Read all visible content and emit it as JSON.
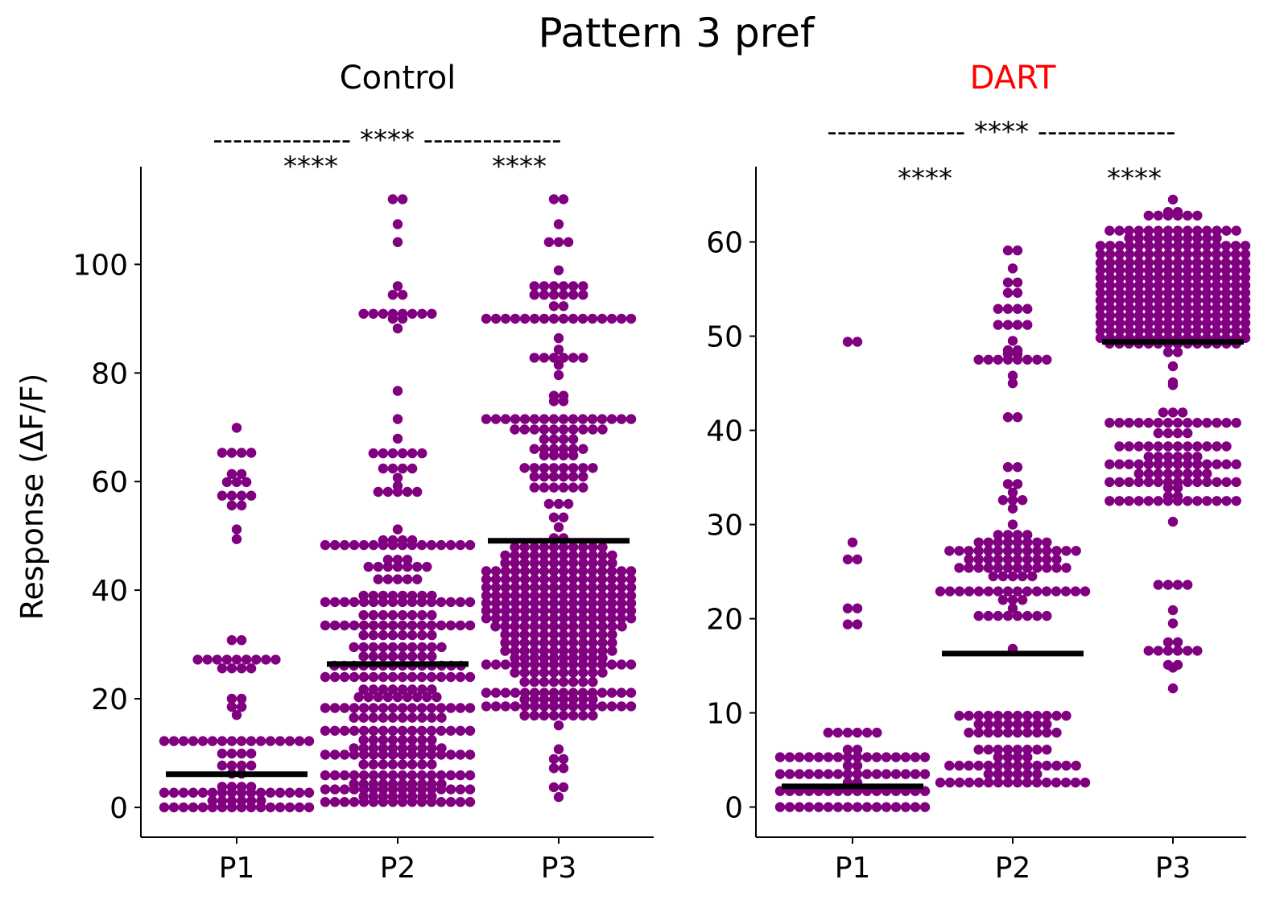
{
  "chart_data": {
    "type": "scatter",
    "subtype": "swarm",
    "title": "Pattern 3 pref",
    "ylabel": "Response (ΔF/F)",
    "marker_color": "#800080",
    "median_color": "#000000",
    "panels": [
      {
        "title": "Control",
        "title_color": "#000000",
        "categories": [
          "P1",
          "P2",
          "P3"
        ],
        "ylim": [
          -5.5,
          118
        ],
        "yticks": [
          0,
          20,
          40,
          60,
          80,
          100
        ],
        "medians": [
          6.1,
          26.4,
          49.1
        ],
        "significance": {
          "overall": "-------------- **** --------------",
          "pairs": [
            "****",
            "****"
          ]
        },
        "points": [
          [
            {
              "y": 69.9,
              "n": 1
            },
            {
              "y": 65.3,
              "n": 4
            },
            {
              "y": 61.4,
              "n": 2
            },
            {
              "y": 59.9,
              "n": 3
            },
            {
              "y": 57.4,
              "n": 4
            },
            {
              "y": 55.6,
              "n": 2
            },
            {
              "y": 51.2,
              "n": 1
            },
            {
              "y": 49.4,
              "n": 1
            },
            {
              "y": 30.8,
              "n": 2
            },
            {
              "y": 27.2,
              "n": 9
            },
            {
              "y": 25.6,
              "n": 4
            },
            {
              "y": 20.0,
              "n": 2
            },
            {
              "y": 18.5,
              "n": 2
            },
            {
              "y": 17.0,
              "n": 1
            },
            {
              "y": 12.2,
              "n": 16
            },
            {
              "y": 9.9,
              "n": 4
            },
            {
              "y": 7.7,
              "n": 4
            },
            {
              "y": 6.2,
              "n": 2
            },
            {
              "y": 3.8,
              "n": 4
            },
            {
              "y": 2.7,
              "n": 16
            },
            {
              "y": 1.2,
              "n": 6
            },
            {
              "y": 0.0,
              "n": 16
            }
          ],
          [
            {
              "y": 112.0,
              "n": 2
            },
            {
              "y": 107.4,
              "n": 1
            },
            {
              "y": 104.1,
              "n": 1
            },
            {
              "y": 96.0,
              "n": 1
            },
            {
              "y": 94.4,
              "n": 2
            },
            {
              "y": 90.9,
              "n": 8
            },
            {
              "y": 90.0,
              "n": 2
            },
            {
              "y": 88.2,
              "n": 1
            },
            {
              "y": 76.7,
              "n": 1
            },
            {
              "y": 71.5,
              "n": 1
            },
            {
              "y": 67.9,
              "n": 1
            },
            {
              "y": 65.2,
              "n": 6
            },
            {
              "y": 62.4,
              "n": 4
            },
            {
              "y": 60.7,
              "n": 1
            },
            {
              "y": 59.2,
              "n": 1
            },
            {
              "y": 58.1,
              "n": 5
            },
            {
              "y": 51.2,
              "n": 1
            },
            {
              "y": 49.2,
              "n": 4
            },
            {
              "y": 48.3,
              "n": 16
            },
            {
              "y": 45.6,
              "n": 3
            },
            {
              "y": 44.3,
              "n": 7
            },
            {
              "y": 42.0,
              "n": 5
            },
            {
              "y": 39.0,
              "n": 8
            },
            {
              "y": 37.8,
              "n": 16
            },
            {
              "y": 35.4,
              "n": 8
            },
            {
              "y": 33.5,
              "n": 16
            },
            {
              "y": 31.7,
              "n": 8
            },
            {
              "y": 29.5,
              "n": 10
            },
            {
              "y": 27.8,
              "n": 8
            },
            {
              "y": 26.1,
              "n": 14
            },
            {
              "y": 24.0,
              "n": 16
            },
            {
              "y": 21.7,
              "n": 8
            },
            {
              "y": 20.3,
              "n": 9
            },
            {
              "y": 18.3,
              "n": 16
            },
            {
              "y": 16.5,
              "n": 10
            },
            {
              "y": 14.1,
              "n": 16
            },
            {
              "y": 12.4,
              "n": 8
            },
            {
              "y": 10.9,
              "n": 10
            },
            {
              "y": 9.7,
              "n": 16
            },
            {
              "y": 7.9,
              "n": 8
            },
            {
              "y": 5.9,
              "n": 16
            },
            {
              "y": 4.3,
              "n": 10
            },
            {
              "y": 3.3,
              "n": 16
            },
            {
              "y": 2.0,
              "n": 8
            },
            {
              "y": 1.0,
              "n": 16
            }
          ],
          [
            {
              "y": 112.0,
              "n": 2
            },
            {
              "y": 107.4,
              "n": 1
            },
            {
              "y": 104.1,
              "n": 3
            },
            {
              "y": 98.9,
              "n": 1
            },
            {
              "y": 96.0,
              "n": 6
            },
            {
              "y": 94.4,
              "n": 6
            },
            {
              "y": 92.3,
              "n": 2
            },
            {
              "y": 90.0,
              "n": 16
            },
            {
              "y": 86.4,
              "n": 1
            },
            {
              "y": 84.3,
              "n": 1
            },
            {
              "y": 82.8,
              "n": 6
            },
            {
              "y": 81.5,
              "n": 1
            },
            {
              "y": 79.6,
              "n": 1
            },
            {
              "y": 75.8,
              "n": 2
            },
            {
              "y": 74.8,
              "n": 2
            },
            {
              "y": 71.5,
              "n": 16
            },
            {
              "y": 69.6,
              "n": 10
            },
            {
              "y": 67.8,
              "n": 4
            },
            {
              "y": 66.0,
              "n": 6
            },
            {
              "y": 64.8,
              "n": 4
            },
            {
              "y": 62.5,
              "n": 8
            },
            {
              "y": 60.9,
              "n": 6
            },
            {
              "y": 58.9,
              "n": 6
            },
            {
              "y": 55.9,
              "n": 3
            },
            {
              "y": 53.4,
              "n": 2
            },
            {
              "y": 51.6,
              "n": 1
            },
            {
              "y": 49.6,
              "n": 2
            },
            {
              "y": 47.9,
              "n": 10
            },
            {
              "y": 46.4,
              "n": 12
            },
            {
              "y": 45.0,
              "n": 12
            },
            {
              "y": 43.5,
              "n": 16
            },
            {
              "y": 42.0,
              "n": 16
            },
            {
              "y": 40.5,
              "n": 16
            },
            {
              "y": 39.0,
              "n": 16
            },
            {
              "y": 37.6,
              "n": 16
            },
            {
              "y": 36.2,
              "n": 16
            },
            {
              "y": 34.8,
              "n": 16
            },
            {
              "y": 33.3,
              "n": 14
            },
            {
              "y": 31.8,
              "n": 12
            },
            {
              "y": 30.3,
              "n": 12
            },
            {
              "y": 28.8,
              "n": 12
            },
            {
              "y": 27.5,
              "n": 10
            },
            {
              "y": 26.3,
              "n": 16
            },
            {
              "y": 24.8,
              "n": 10
            },
            {
              "y": 23.1,
              "n": 8
            },
            {
              "y": 21.1,
              "n": 16
            },
            {
              "y": 19.9,
              "n": 8
            },
            {
              "y": 18.6,
              "n": 16
            },
            {
              "y": 16.9,
              "n": 8
            },
            {
              "y": 15.1,
              "n": 1
            },
            {
              "y": 10.7,
              "n": 1
            },
            {
              "y": 8.9,
              "n": 2
            },
            {
              "y": 7.2,
              "n": 2
            },
            {
              "y": 3.7,
              "n": 2
            },
            {
              "y": 1.9,
              "n": 1
            }
          ]
        ]
      },
      {
        "title": "DART",
        "title_color": "#ff0000",
        "categories": [
          "P1",
          "P2",
          "P3"
        ],
        "ylim": [
          -3.2,
          68.0
        ],
        "yticks": [
          0,
          10,
          20,
          30,
          40,
          50,
          60
        ],
        "medians": [
          2.2,
          16.3,
          49.4
        ],
        "significance": {
          "overall": "-------------- **** --------------",
          "pairs": [
            "****",
            "****"
          ]
        },
        "points": [
          [
            {
              "y": 49.4,
              "n": 2
            },
            {
              "y": 28.1,
              "n": 1
            },
            {
              "y": 26.3,
              "n": 2
            },
            {
              "y": 21.1,
              "n": 2
            },
            {
              "y": 19.4,
              "n": 2
            },
            {
              "y": 7.9,
              "n": 6
            },
            {
              "y": 6.1,
              "n": 2
            },
            {
              "y": 5.3,
              "n": 16
            },
            {
              "y": 4.4,
              "n": 2
            },
            {
              "y": 3.5,
              "n": 16
            },
            {
              "y": 2.6,
              "n": 2
            },
            {
              "y": 1.7,
              "n": 16
            },
            {
              "y": 0.0,
              "n": 16
            }
          ],
          [
            {
              "y": 59.1,
              "n": 2
            },
            {
              "y": 57.2,
              "n": 1
            },
            {
              "y": 55.7,
              "n": 2
            },
            {
              "y": 54.6,
              "n": 2
            },
            {
              "y": 52.9,
              "n": 4
            },
            {
              "y": 51.2,
              "n": 4
            },
            {
              "y": 49.5,
              "n": 1
            },
            {
              "y": 48.5,
              "n": 2
            },
            {
              "y": 48.1,
              "n": 2
            },
            {
              "y": 47.5,
              "n": 8
            },
            {
              "y": 45.8,
              "n": 1
            },
            {
              "y": 45.0,
              "n": 1
            },
            {
              "y": 41.4,
              "n": 2
            },
            {
              "y": 36.1,
              "n": 2
            },
            {
              "y": 34.3,
              "n": 2
            },
            {
              "y": 33.4,
              "n": 1
            },
            {
              "y": 32.6,
              "n": 3
            },
            {
              "y": 31.7,
              "n": 1
            },
            {
              "y": 30.0,
              "n": 1
            },
            {
              "y": 28.9,
              "n": 4
            },
            {
              "y": 28.1,
              "n": 8
            },
            {
              "y": 27.2,
              "n": 14
            },
            {
              "y": 26.3,
              "n": 10
            },
            {
              "y": 25.4,
              "n": 12
            },
            {
              "y": 24.5,
              "n": 5
            },
            {
              "y": 22.9,
              "n": 16
            },
            {
              "y": 22.0,
              "n": 3
            },
            {
              "y": 21.1,
              "n": 1
            },
            {
              "y": 20.3,
              "n": 8
            },
            {
              "y": 16.8,
              "n": 1
            },
            {
              "y": 9.7,
              "n": 12
            },
            {
              "y": 8.8,
              "n": 8
            },
            {
              "y": 7.9,
              "n": 10
            },
            {
              "y": 6.1,
              "n": 8
            },
            {
              "y": 5.3,
              "n": 4
            },
            {
              "y": 4.4,
              "n": 14
            },
            {
              "y": 3.5,
              "n": 6
            },
            {
              "y": 2.6,
              "n": 16
            }
          ],
          [
            {
              "y": 64.5,
              "n": 1
            },
            {
              "y": 63.2,
              "n": 2
            },
            {
              "y": 62.8,
              "n": 6
            },
            {
              "y": 61.2,
              "n": 14
            },
            {
              "y": 60.4,
              "n": 10
            },
            {
              "y": 59.6,
              "n": 16
            },
            {
              "y": 58.7,
              "n": 16
            },
            {
              "y": 57.8,
              "n": 16
            },
            {
              "y": 57.0,
              "n": 16
            },
            {
              "y": 56.2,
              "n": 16
            },
            {
              "y": 55.4,
              "n": 16
            },
            {
              "y": 54.6,
              "n": 16
            },
            {
              "y": 53.8,
              "n": 16
            },
            {
              "y": 53.0,
              "n": 16
            },
            {
              "y": 52.2,
              "n": 16
            },
            {
              "y": 51.4,
              "n": 16
            },
            {
              "y": 50.6,
              "n": 16
            },
            {
              "y": 49.8,
              "n": 16
            },
            {
              "y": 49.2,
              "n": 14
            },
            {
              "y": 48.3,
              "n": 2
            },
            {
              "y": 46.8,
              "n": 1
            },
            {
              "y": 45.1,
              "n": 1
            },
            {
              "y": 44.8,
              "n": 1
            },
            {
              "y": 41.9,
              "n": 3
            },
            {
              "y": 40.8,
              "n": 14
            },
            {
              "y": 39.7,
              "n": 4
            },
            {
              "y": 38.3,
              "n": 12
            },
            {
              "y": 37.2,
              "n": 6
            },
            {
              "y": 36.4,
              "n": 14
            },
            {
              "y": 35.4,
              "n": 8
            },
            {
              "y": 34.5,
              "n": 14
            },
            {
              "y": 33.9,
              "n": 2
            },
            {
              "y": 33.0,
              "n": 2
            },
            {
              "y": 32.5,
              "n": 14
            },
            {
              "y": 30.3,
              "n": 1
            },
            {
              "y": 23.6,
              "n": 4
            },
            {
              "y": 20.9,
              "n": 1
            },
            {
              "y": 19.5,
              "n": 1
            },
            {
              "y": 17.5,
              "n": 2
            },
            {
              "y": 16.6,
              "n": 6
            },
            {
              "y": 15.1,
              "n": 2
            },
            {
              "y": 14.8,
              "n": 1
            },
            {
              "y": 12.6,
              "n": 1
            }
          ]
        ]
      }
    ]
  }
}
